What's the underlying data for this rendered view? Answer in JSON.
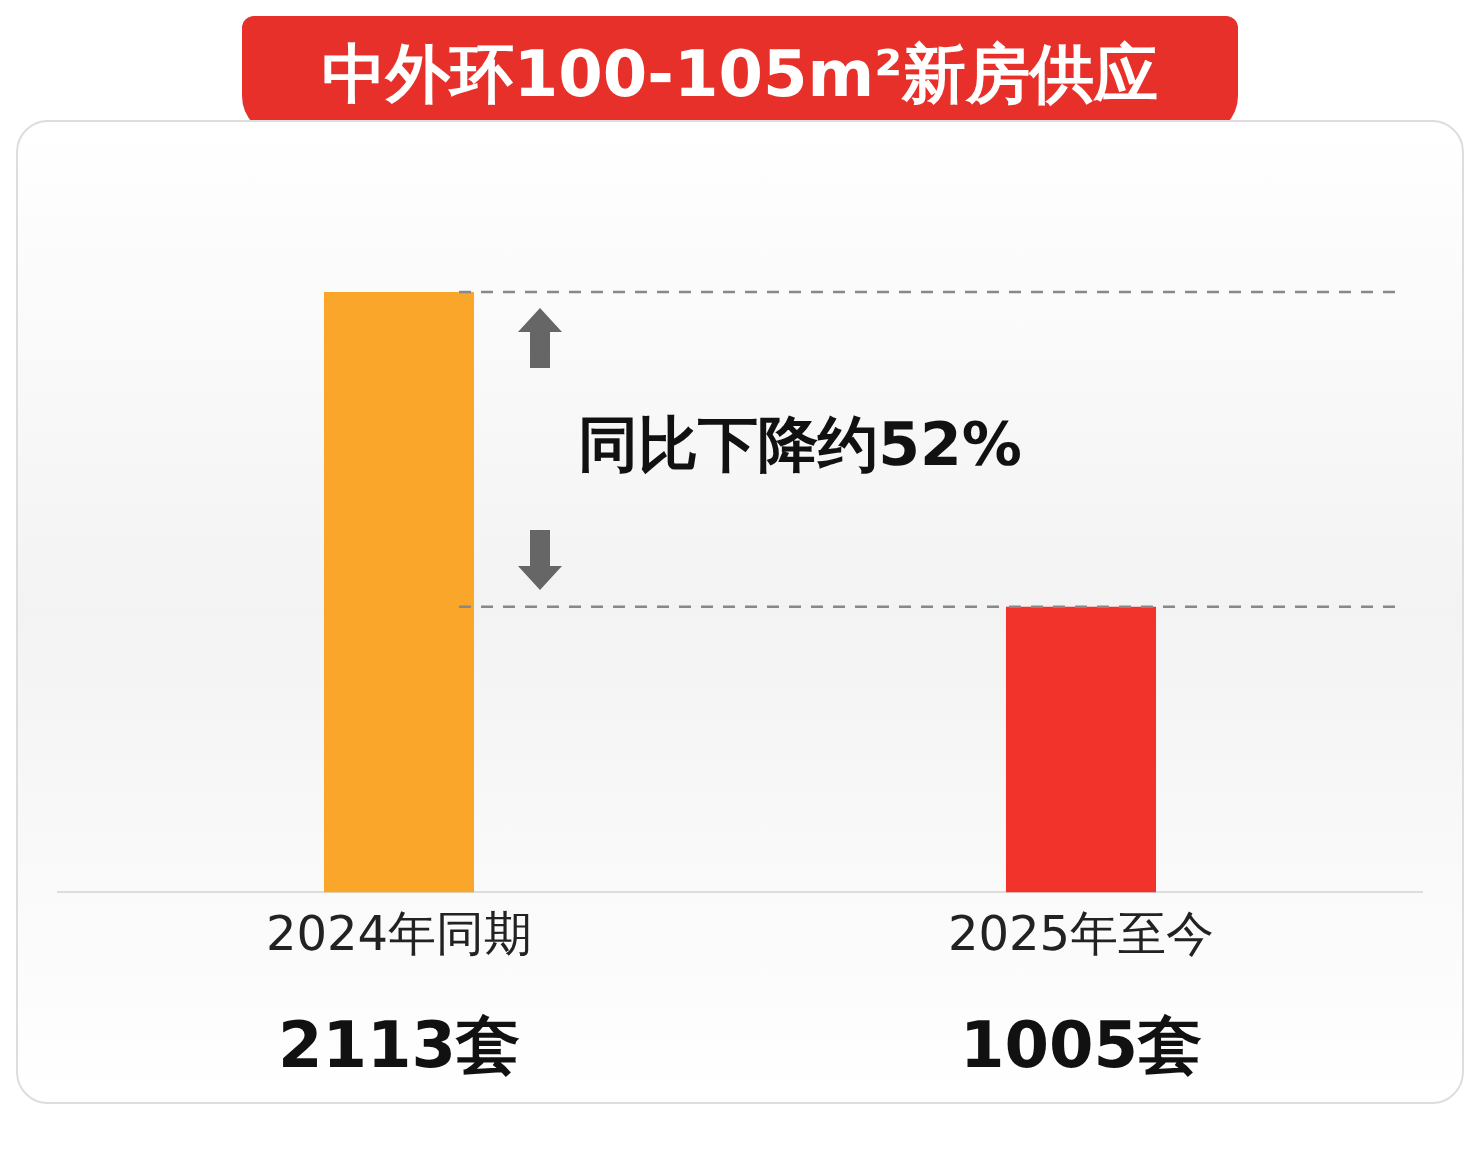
{
  "chart_data": {
    "type": "bar",
    "title": "中外环100-105m²新房供应",
    "categories": [
      "2024年同期",
      "2025年至今"
    ],
    "values": [
      2113,
      1005
    ],
    "colors": [
      "#f9a62b",
      "#f2332b"
    ],
    "value_labels": [
      "2113套",
      "1005套"
    ],
    "ref_lines": [
      {
        "axis": "y",
        "value": 2113,
        "line_style": "dashed",
        "color": "#888888"
      },
      {
        "axis": "y",
        "value": 1005,
        "line_style": "dashed",
        "color": "#888888"
      }
    ],
    "annotations": [
      "同比下降约52%"
    ],
    "grid": false,
    "legend": false,
    "tick_labels": "x"
  }
}
